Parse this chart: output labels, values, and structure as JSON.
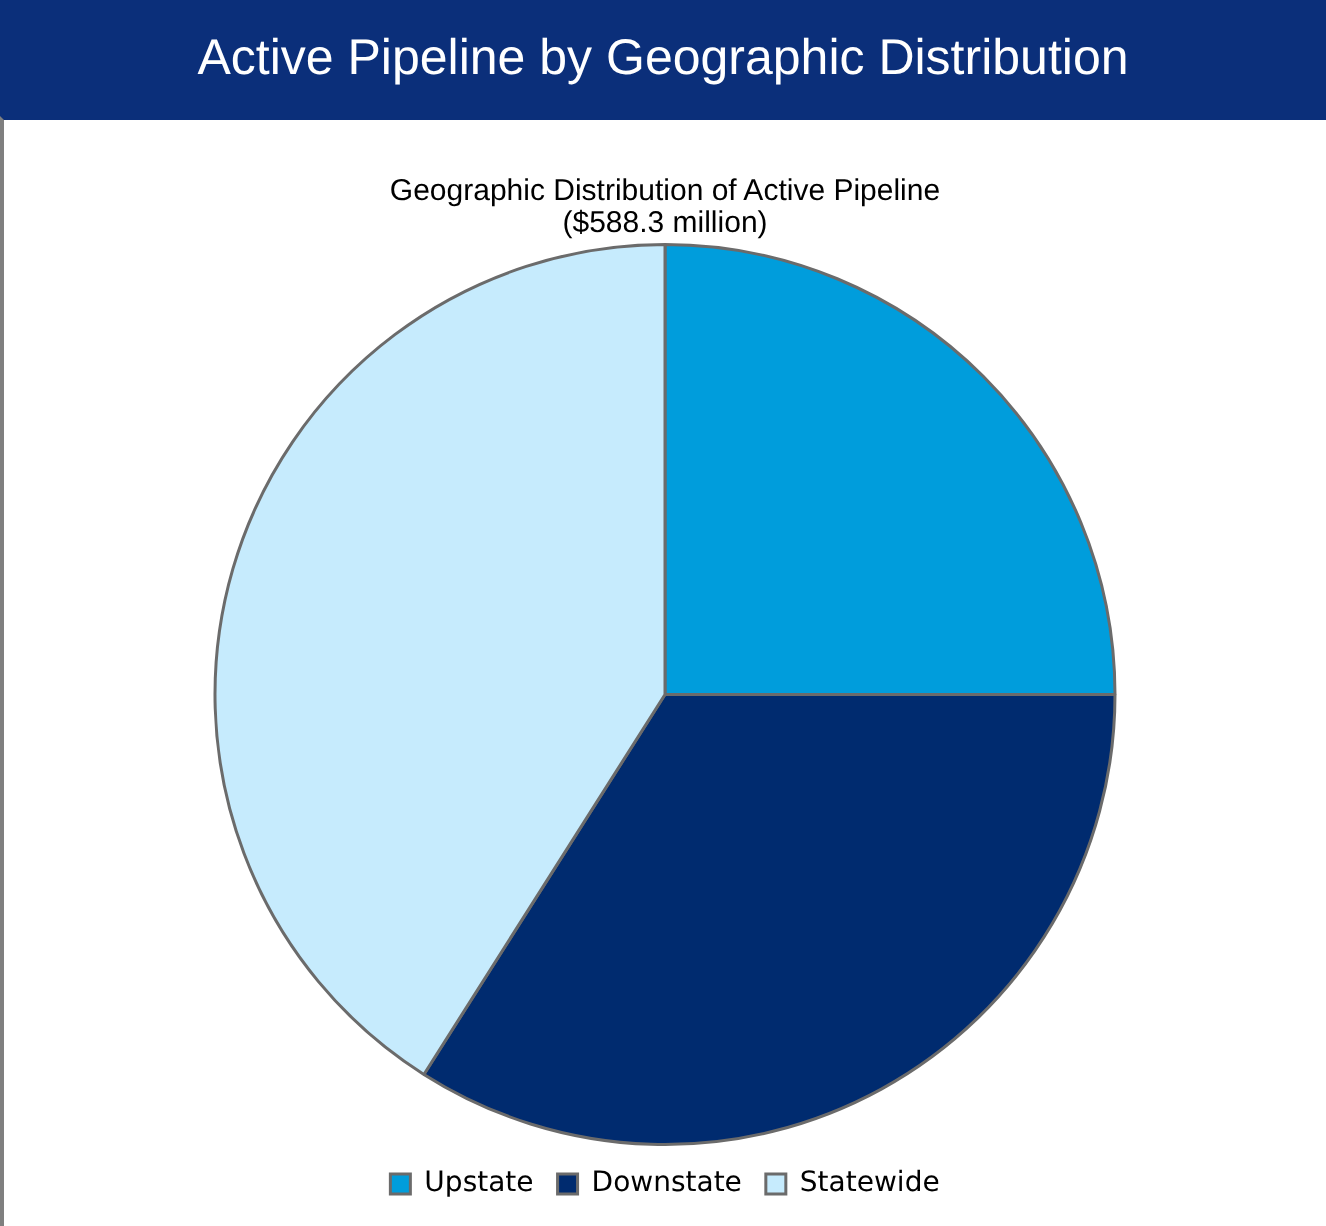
{
  "chart_data": {
    "type": "pie",
    "title": "Active Pipeline by Geographic Distribution",
    "subtitle": "Geographic Distribution of Active Pipeline\n($588.3 million)",
    "categories": [
      "Upstate",
      "Downstate",
      "Statewide"
    ],
    "values": [
      25,
      34,
      41
    ],
    "colors": [
      "#009ddc",
      "#002b6f",
      "#c6ebfd"
    ],
    "legend": "bottom"
  }
}
